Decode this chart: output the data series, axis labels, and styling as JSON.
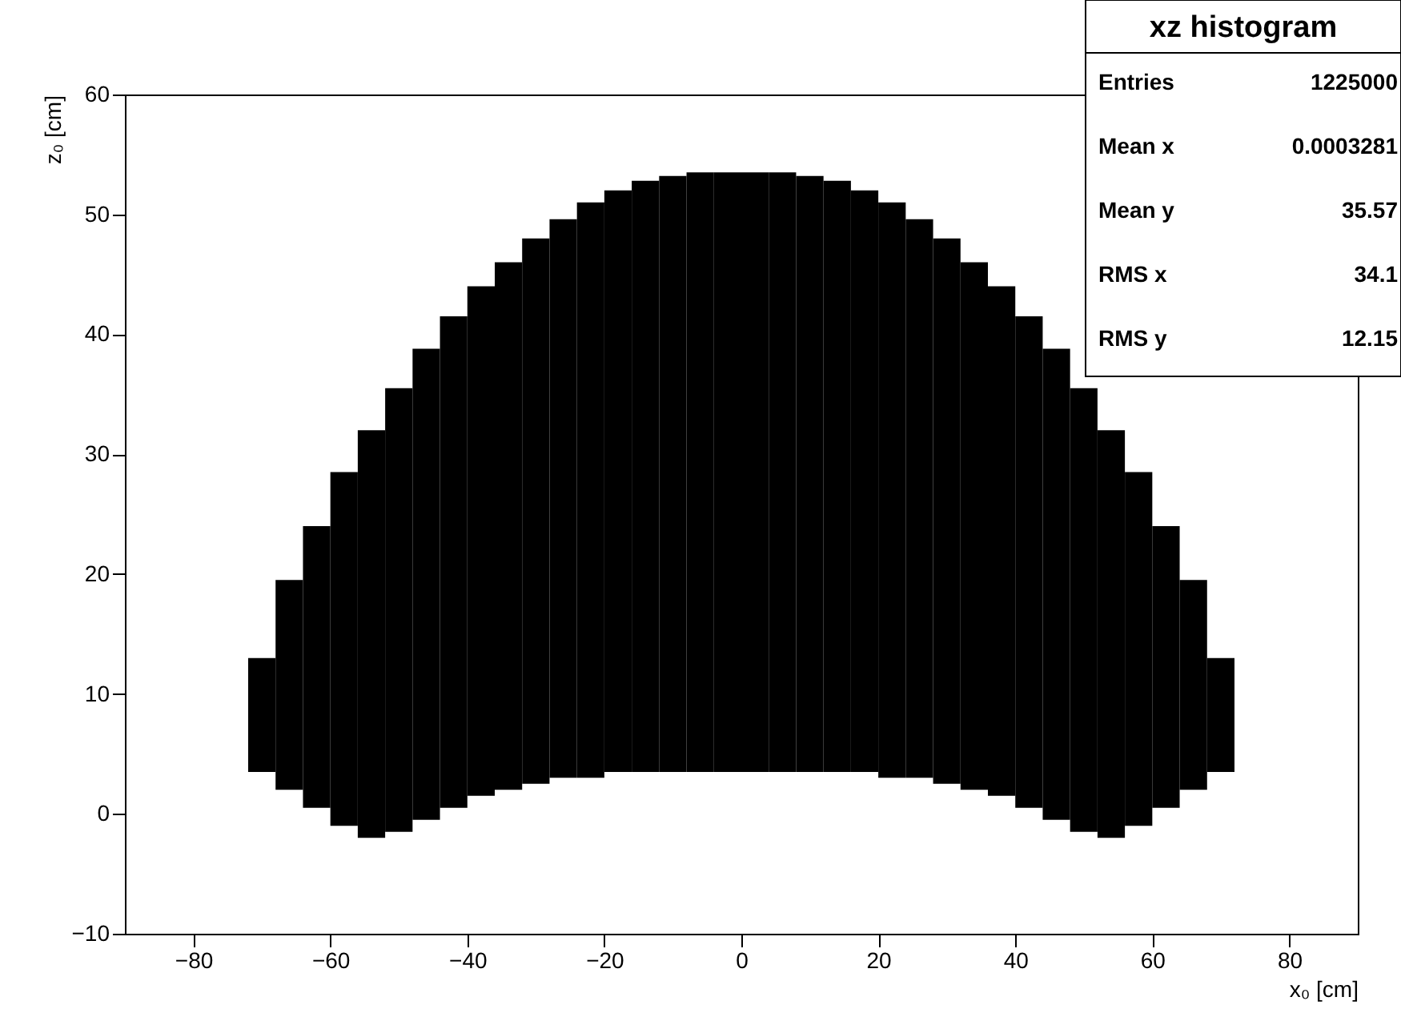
{
  "chart_data": {
    "type": "bar",
    "title": "xz histogram",
    "x": [
      -70,
      -66,
      -62,
      -58,
      -54,
      -50,
      -46,
      -42,
      -38,
      -34,
      -30,
      -26,
      -22,
      -18,
      -14,
      -10,
      -6,
      -2,
      2,
      6,
      10,
      14,
      18,
      22,
      26,
      30,
      34,
      38,
      42,
      46,
      50,
      54,
      58,
      62,
      66,
      70
    ],
    "base": [
      3.5,
      2,
      0.5,
      -1,
      -2,
      -1.5,
      -0.5,
      0.5,
      1.5,
      2,
      2.5,
      3,
      3,
      3.5,
      3.5,
      3.5,
      3.5,
      3.5,
      3.5,
      3.5,
      3.5,
      3.5,
      3.5,
      3,
      3,
      2.5,
      2,
      1.5,
      0.5,
      -0.5,
      -1.5,
      -2,
      -1,
      0.5,
      2,
      3.5
    ],
    "values": [
      9.5,
      17.5,
      23.5,
      29.5,
      34,
      37,
      39.3,
      41,
      42.5,
      44,
      45.5,
      46.6,
      48,
      48.5,
      49.3,
      49.7,
      50,
      50,
      50,
      50,
      49.7,
      49.3,
      48.5,
      48,
      46.6,
      45.5,
      44,
      42.5,
      41,
      39.3,
      37,
      34,
      29.5,
      23.5,
      17.5,
      9.5
    ],
    "color": "#000000",
    "xlabel": "x₀ [cm]",
    "ylabel": "z₀ [cm]",
    "xlim": [
      -90,
      90
    ],
    "xticks": [
      -80,
      -60,
      -40,
      -20,
      0,
      20,
      40,
      60,
      80
    ],
    "ylim": [
      -10,
      60
    ],
    "yticks": [
      -10,
      0,
      10,
      20,
      30,
      40,
      50,
      60
    ],
    "grid": false,
    "annotations": [
      "Entries",
      "1225000",
      "Mean x",
      "0.0003281",
      "Mean y",
      "35.57",
      "RMS x",
      "34.1",
      "RMS y",
      "12.15"
    ]
  }
}
